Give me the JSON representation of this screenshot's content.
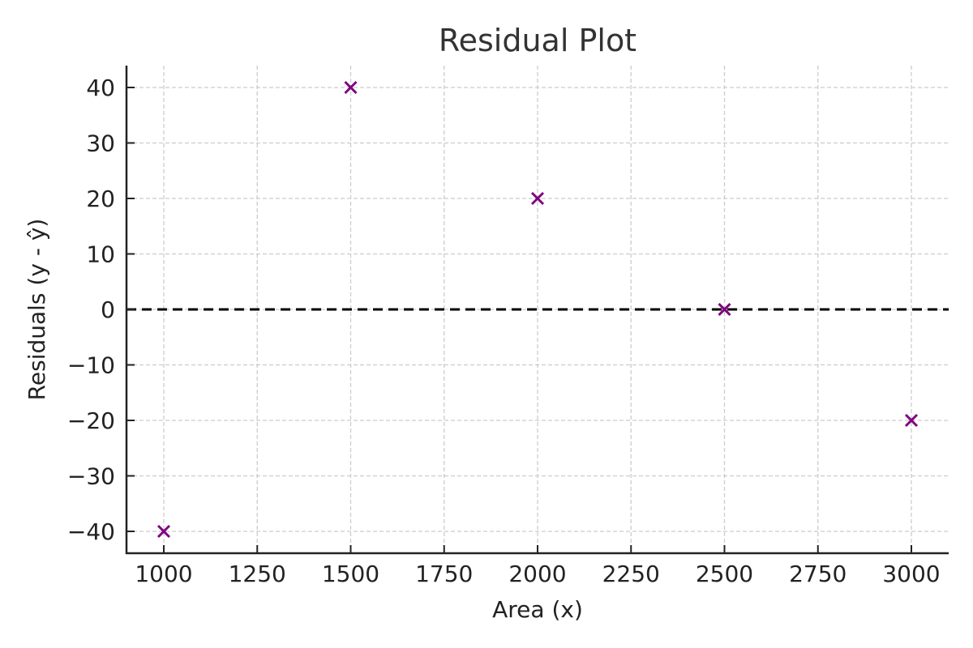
{
  "chart_data": {
    "type": "scatter",
    "title": "Residual Plot",
    "xlabel": "Area (x)",
    "ylabel": "Residuals (y - ŷ)",
    "x": [
      1000,
      1500,
      2000,
      2500,
      3000
    ],
    "y": [
      -40,
      40,
      20,
      0,
      -20
    ],
    "series": [
      {
        "name": "Residuals",
        "x": [
          1000,
          1500,
          2000,
          2500,
          3000
        ],
        "y": [
          -40,
          40,
          20,
          0,
          -20
        ],
        "marker": "x",
        "color": "#800080"
      }
    ],
    "reference_line": {
      "y": 0,
      "style": "dashed",
      "color": "#000000"
    },
    "xlim": [
      900,
      3100
    ],
    "ylim": [
      -44,
      44
    ],
    "xticks": [
      1000,
      1250,
      1500,
      1750,
      2000,
      2250,
      2500,
      2750,
      3000
    ],
    "yticks": [
      -40,
      -30,
      -20,
      -10,
      0,
      10,
      20,
      30,
      40
    ],
    "xtick_labels": [
      "1000",
      "1250",
      "1500",
      "1750",
      "2000",
      "2250",
      "2500",
      "2750",
      "3000"
    ],
    "ytick_labels": [
      "−40",
      "−30",
      "−20",
      "−10",
      "0",
      "10",
      "20",
      "30",
      "40"
    ],
    "grid": true,
    "legend": null
  }
}
